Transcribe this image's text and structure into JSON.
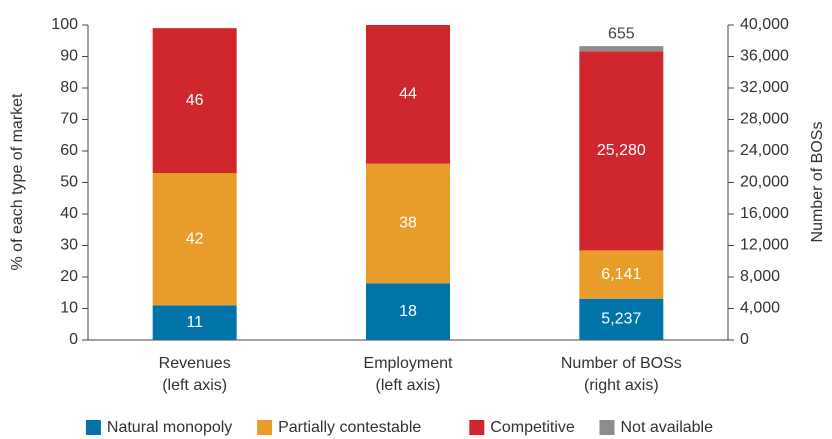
{
  "chart_data": {
    "type": "stacked-bar",
    "categories": [
      [
        "Revenues",
        "(left axis)"
      ],
      [
        "Employment",
        "(left axis)"
      ],
      [
        "Number of BOSs",
        "(right axis)"
      ]
    ],
    "category_axes": [
      "y",
      "y",
      "y2"
    ],
    "series": [
      {
        "name": "Natural monopoly",
        "color": "#0073a8",
        "values": [
          11,
          18,
          5237
        ],
        "value_labels": [
          "11",
          "18",
          "5,237"
        ]
      },
      {
        "name": "Partially contestable",
        "color": "#e89c2a",
        "values": [
          42,
          38,
          6141
        ],
        "value_labels": [
          "42",
          "38",
          "6,141"
        ]
      },
      {
        "name": "Competitive",
        "color": "#d0262e",
        "values": [
          46,
          44,
          25280
        ],
        "value_labels": [
          "46",
          "44",
          "25,280"
        ]
      },
      {
        "name": "Not available",
        "color": "#8e8a8f",
        "values": [
          null,
          null,
          655
        ],
        "value_labels": [
          null,
          null,
          "655"
        ]
      }
    ],
    "ylabel": "% of each type of market",
    "y2label": "Number of BOSs",
    "ylim": [
      0,
      100
    ],
    "yticks": [
      0,
      10,
      20,
      30,
      40,
      50,
      60,
      70,
      80,
      90,
      100
    ],
    "y2lim": [
      0,
      40000
    ],
    "y2ticks": [
      0,
      {
        "value": 4000,
        "label": "4,000"
      },
      {
        "value": 8000,
        "label": "8,000"
      },
      {
        "value": 12000,
        "label": "12,000"
      },
      {
        "value": 16000,
        "label": "16,000"
      },
      {
        "value": 20000,
        "label": "20,000"
      },
      {
        "value": 24000,
        "label": "24,000"
      },
      {
        "value": 28000,
        "label": "28,000"
      },
      {
        "value": 32000,
        "label": "32,000"
      },
      {
        "value": 36000,
        "label": "36,000"
      },
      {
        "value": 40000,
        "label": "40,000"
      }
    ],
    "legend": "bottom"
  }
}
